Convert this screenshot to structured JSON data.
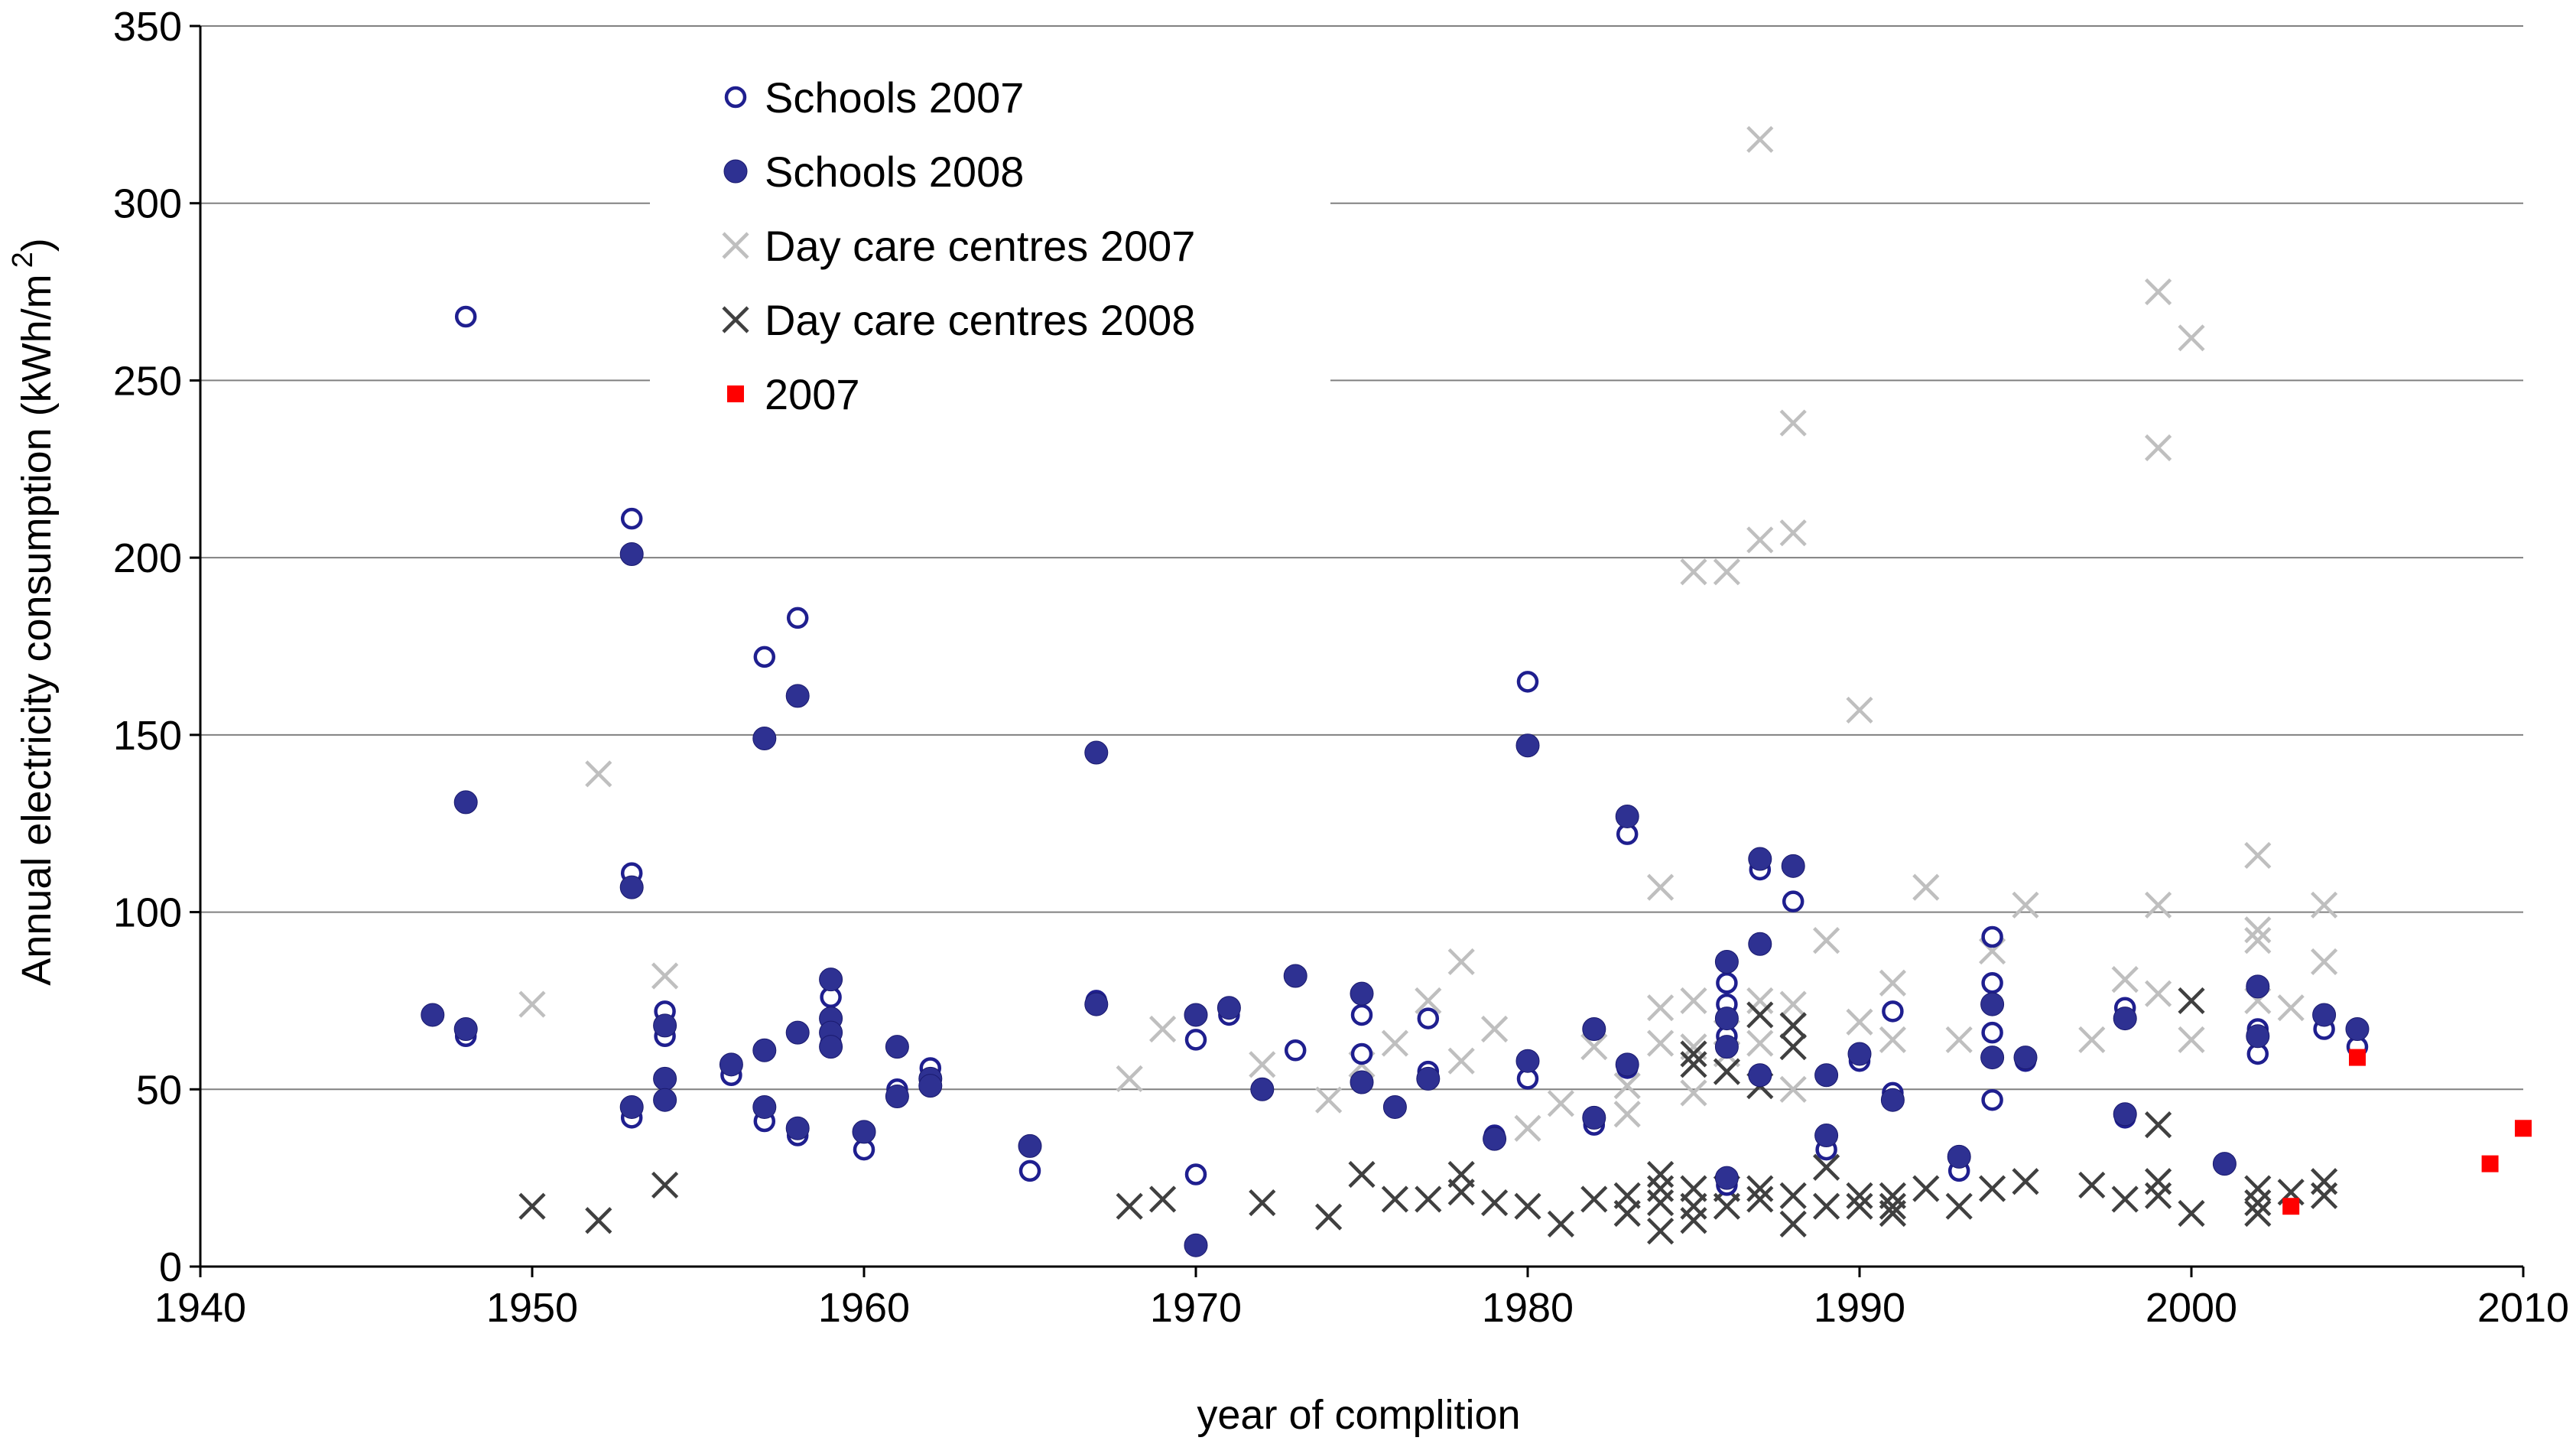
{
  "chart_data": {
    "type": "scatter",
    "title": "",
    "xlabel": "year of complition",
    "ylabel": "Annual electricity consumption (kWh/m",
    "ylabel_superscript": "2",
    "ylabel_close": ")",
    "xlim": [
      1940,
      2010
    ],
    "ylim": [
      0,
      350
    ],
    "xticks": [
      1940,
      1950,
      1960,
      1970,
      1980,
      1990,
      2000,
      2010
    ],
    "yticks": [
      0,
      50,
      100,
      150,
      200,
      250,
      300,
      350
    ],
    "grid": "horizontal",
    "legend_position": "top-left",
    "series": [
      {
        "name": "Schools 2007",
        "marker": "open-circle",
        "color": "#1f1f8f",
        "points": [
          [
            1948,
            268
          ],
          [
            1948,
            65
          ],
          [
            1953,
            211
          ],
          [
            1953,
            111
          ],
          [
            1953,
            42
          ],
          [
            1954,
            72
          ],
          [
            1954,
            65
          ],
          [
            1956,
            54
          ],
          [
            1957,
            172
          ],
          [
            1957,
            41
          ],
          [
            1958,
            183
          ],
          [
            1958,
            37
          ],
          [
            1959,
            76
          ],
          [
            1959,
            63
          ],
          [
            1960,
            33
          ],
          [
            1961,
            50
          ],
          [
            1962,
            56
          ],
          [
            1962,
            51
          ],
          [
            1965,
            27
          ],
          [
            1967,
            75
          ],
          [
            1970,
            64
          ],
          [
            1970,
            26
          ],
          [
            1971,
            71
          ],
          [
            1973,
            61
          ],
          [
            1975,
            71
          ],
          [
            1975,
            60
          ],
          [
            1977,
            70
          ],
          [
            1977,
            55
          ],
          [
            1979,
            37
          ],
          [
            1980,
            165
          ],
          [
            1980,
            53
          ],
          [
            1982,
            40
          ],
          [
            1982,
            67
          ],
          [
            1983,
            122
          ],
          [
            1983,
            56
          ],
          [
            1986,
            80
          ],
          [
            1986,
            74
          ],
          [
            1986,
            65
          ],
          [
            1986,
            23
          ],
          [
            1987,
            112
          ],
          [
            1988,
            103
          ],
          [
            1989,
            33
          ],
          [
            1990,
            58
          ],
          [
            1991,
            72
          ],
          [
            1991,
            49
          ],
          [
            1993,
            27
          ],
          [
            1994,
            93
          ],
          [
            1994,
            80
          ],
          [
            1994,
            66
          ],
          [
            1994,
            47
          ],
          [
            1995,
            58
          ],
          [
            1998,
            73
          ],
          [
            1998,
            42
          ],
          [
            2002,
            60
          ],
          [
            2002,
            67
          ],
          [
            2004,
            67
          ],
          [
            2005,
            62
          ]
        ]
      },
      {
        "name": "Schools 2008",
        "marker": "filled-circle",
        "color": "#2e3192",
        "points": [
          [
            1947,
            71
          ],
          [
            1948,
            131
          ],
          [
            1948,
            67
          ],
          [
            1953,
            201
          ],
          [
            1953,
            107
          ],
          [
            1953,
            45
          ],
          [
            1954,
            68
          ],
          [
            1954,
            53
          ],
          [
            1954,
            47
          ],
          [
            1956,
            57
          ],
          [
            1957,
            61
          ],
          [
            1957,
            45
          ],
          [
            1957,
            149
          ],
          [
            1958,
            161
          ],
          [
            1958,
            66
          ],
          [
            1958,
            39
          ],
          [
            1959,
            81
          ],
          [
            1959,
            70
          ],
          [
            1959,
            66
          ],
          [
            1959,
            62
          ],
          [
            1960,
            38
          ],
          [
            1961,
            62
          ],
          [
            1961,
            48
          ],
          [
            1962,
            53
          ],
          [
            1962,
            51
          ],
          [
            1965,
            34
          ],
          [
            1967,
            145
          ],
          [
            1967,
            74
          ],
          [
            1970,
            71
          ],
          [
            1970,
            6
          ],
          [
            1971,
            73
          ],
          [
            1972,
            50
          ],
          [
            1973,
            82
          ],
          [
            1975,
            77
          ],
          [
            1975,
            52
          ],
          [
            1976,
            45
          ],
          [
            1977,
            53
          ],
          [
            1979,
            36
          ],
          [
            1980,
            147
          ],
          [
            1980,
            58
          ],
          [
            1982,
            67
          ],
          [
            1982,
            42
          ],
          [
            1983,
            127
          ],
          [
            1983,
            57
          ],
          [
            1986,
            86
          ],
          [
            1986,
            70
          ],
          [
            1986,
            62
          ],
          [
            1986,
            25
          ],
          [
            1987,
            115
          ],
          [
            1987,
            91
          ],
          [
            1987,
            54
          ],
          [
            1988,
            113
          ],
          [
            1989,
            54
          ],
          [
            1989,
            37
          ],
          [
            1990,
            60
          ],
          [
            1991,
            47
          ],
          [
            1993,
            31
          ],
          [
            1994,
            74
          ],
          [
            1994,
            59
          ],
          [
            1995,
            59
          ],
          [
            1998,
            70
          ],
          [
            1998,
            43
          ],
          [
            2001,
            29
          ],
          [
            2002,
            79
          ],
          [
            2002,
            65
          ],
          [
            2004,
            71
          ],
          [
            2005,
            67
          ]
        ]
      },
      {
        "name": "Day care centres 2007",
        "marker": "x",
        "color": "#bfbfbf",
        "points": [
          [
            1950,
            74
          ],
          [
            1952,
            139
          ],
          [
            1954,
            82
          ],
          [
            1968,
            53
          ],
          [
            1969,
            67
          ],
          [
            1972,
            57
          ],
          [
            1974,
            47
          ],
          [
            1975,
            57
          ],
          [
            1976,
            63
          ],
          [
            1977,
            75
          ],
          [
            1978,
            86
          ],
          [
            1978,
            58
          ],
          [
            1979,
            67
          ],
          [
            1980,
            39
          ],
          [
            1981,
            46
          ],
          [
            1982,
            62
          ],
          [
            1983,
            43
          ],
          [
            1983,
            51
          ],
          [
            1984,
            107
          ],
          [
            1984,
            73
          ],
          [
            1984,
            63
          ],
          [
            1985,
            196
          ],
          [
            1985,
            75
          ],
          [
            1985,
            62
          ],
          [
            1985,
            49
          ],
          [
            1986,
            196
          ],
          [
            1986,
            66
          ],
          [
            1986,
            60
          ],
          [
            1987,
            318
          ],
          [
            1987,
            205
          ],
          [
            1987,
            75
          ],
          [
            1987,
            63
          ],
          [
            1988,
            238
          ],
          [
            1988,
            207
          ],
          [
            1988,
            74
          ],
          [
            1988,
            50
          ],
          [
            1989,
            92
          ],
          [
            1990,
            157
          ],
          [
            1990,
            69
          ],
          [
            1991,
            80
          ],
          [
            1991,
            64
          ],
          [
            1992,
            107
          ],
          [
            1993,
            64
          ],
          [
            1994,
            89
          ],
          [
            1995,
            102
          ],
          [
            1997,
            64
          ],
          [
            1998,
            81
          ],
          [
            1999,
            275
          ],
          [
            1999,
            231
          ],
          [
            1999,
            102
          ],
          [
            1999,
            77
          ],
          [
            2000,
            262
          ],
          [
            2000,
            64
          ],
          [
            2002,
            116
          ],
          [
            2002,
            95
          ],
          [
            2002,
            92
          ],
          [
            2002,
            75
          ],
          [
            2003,
            73
          ],
          [
            2004,
            102
          ],
          [
            2004,
            86
          ]
        ]
      },
      {
        "name": "Day care centres 2008",
        "marker": "x",
        "color": "#404040",
        "points": [
          [
            1950,
            17
          ],
          [
            1952,
            13
          ],
          [
            1954,
            23
          ],
          [
            1968,
            17
          ],
          [
            1969,
            19
          ],
          [
            1972,
            18
          ],
          [
            1974,
            14
          ],
          [
            1975,
            26
          ],
          [
            1976,
            19
          ],
          [
            1977,
            19
          ],
          [
            1978,
            26
          ],
          [
            1978,
            21
          ],
          [
            1979,
            18
          ],
          [
            1980,
            17
          ],
          [
            1981,
            12
          ],
          [
            1982,
            19
          ],
          [
            1983,
            15
          ],
          [
            1983,
            20
          ],
          [
            1984,
            26
          ],
          [
            1984,
            22
          ],
          [
            1984,
            18
          ],
          [
            1984,
            10
          ],
          [
            1985,
            60
          ],
          [
            1985,
            57
          ],
          [
            1985,
            22
          ],
          [
            1985,
            17
          ],
          [
            1985,
            13
          ],
          [
            1986,
            55
          ],
          [
            1986,
            22
          ],
          [
            1986,
            17
          ],
          [
            1987,
            71
          ],
          [
            1987,
            51
          ],
          [
            1987,
            22
          ],
          [
            1987,
            19
          ],
          [
            1988,
            68
          ],
          [
            1988,
            62
          ],
          [
            1988,
            20
          ],
          [
            1988,
            12
          ],
          [
            1989,
            28
          ],
          [
            1989,
            17
          ],
          [
            1990,
            20
          ],
          [
            1990,
            17
          ],
          [
            1991,
            20
          ],
          [
            1991,
            17
          ],
          [
            1991,
            15
          ],
          [
            1992,
            22
          ],
          [
            1993,
            17
          ],
          [
            1994,
            22
          ],
          [
            1995,
            24
          ],
          [
            1997,
            23
          ],
          [
            1998,
            19
          ],
          [
            1999,
            40
          ],
          [
            1999,
            24
          ],
          [
            1999,
            20
          ],
          [
            2000,
            75
          ],
          [
            2000,
            15
          ],
          [
            2002,
            22
          ],
          [
            2002,
            18
          ],
          [
            2002,
            15
          ],
          [
            2003,
            21
          ],
          [
            2004,
            24
          ],
          [
            2004,
            20
          ]
        ]
      },
      {
        "name": "2007",
        "marker": "square",
        "color": "#ff0000",
        "points": [
          [
            2003,
            17
          ],
          [
            2005,
            59
          ],
          [
            2009,
            29
          ],
          [
            2010,
            39
          ]
        ]
      }
    ]
  }
}
